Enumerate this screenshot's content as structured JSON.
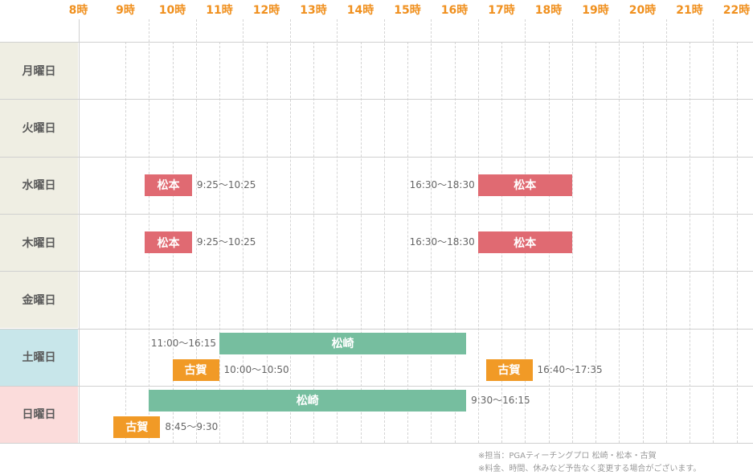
{
  "hours": [
    "8時",
    "9時",
    "10時",
    "11時",
    "12時",
    "13時",
    "14時",
    "15時",
    "16時",
    "17時",
    "18時",
    "19時",
    "20時",
    "21時",
    "22時"
  ],
  "days": [
    {
      "label": "月曜日",
      "color": "#efeee3"
    },
    {
      "label": "火曜日",
      "color": "#efeee3"
    },
    {
      "label": "水曜日",
      "color": "#efeee3"
    },
    {
      "label": "木曜日",
      "color": "#efeee3"
    },
    {
      "label": "金曜日",
      "color": "#efeee3"
    },
    {
      "label": "土曜日",
      "color": "#c8e6ea"
    },
    {
      "label": "日曜日",
      "color": "#fbdcdb"
    }
  ],
  "sessions": [
    {
      "day": 2,
      "name": "松本",
      "color": "#e06a72",
      "start": 9.417,
      "end": 10.417,
      "time": "9:25〜10:25"
    },
    {
      "day": 2,
      "name": "松本",
      "color": "#e06a72",
      "start": 16.5,
      "end": 18.5,
      "time": "16:30〜18:30"
    },
    {
      "day": 3,
      "name": "松本",
      "color": "#e06a72",
      "start": 9.417,
      "end": 10.417,
      "time": "9:25〜10:25"
    },
    {
      "day": 3,
      "name": "松本",
      "color": "#e06a72",
      "start": 16.5,
      "end": 18.5,
      "time": "16:30〜18:30"
    },
    {
      "day": 5,
      "name": "松崎",
      "color": "#76be9f",
      "start": 11.0,
      "end": 16.25,
      "time": "11:00〜16:15"
    },
    {
      "day": 5,
      "name": "古賀",
      "color": "#f19a26",
      "start": 10.0,
      "end": 10.833,
      "time": "10:00〜10:50"
    },
    {
      "day": 5,
      "name": "古賀",
      "color": "#f19a26",
      "start": 16.667,
      "end": 17.583,
      "time": "16:40〜17:35"
    },
    {
      "day": 6,
      "name": "松崎",
      "color": "#76be9f",
      "start": 9.5,
      "end": 16.25,
      "time": "9:30〜16:15"
    },
    {
      "day": 6,
      "name": "古賀",
      "color": "#f19a26",
      "start": 8.75,
      "end": 9.5,
      "time": "8:45〜9:30"
    }
  ],
  "notes": {
    "line1": "※担当：PGAティーチングプロ 松崎・松本・古賀",
    "line2": "※料金、時間、休みなど予告なく変更する場合がございます。"
  }
}
